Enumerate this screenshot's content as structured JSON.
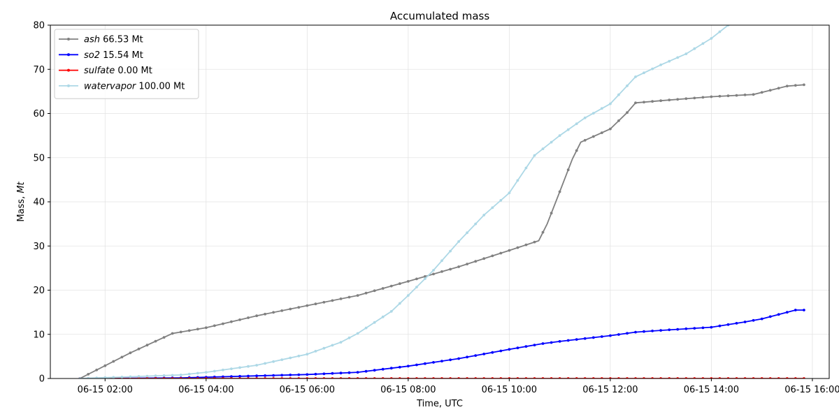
{
  "chart_data": {
    "type": "line",
    "title": "Accumulated mass",
    "xlabel": "Time, UTC",
    "ylabel_prefix": "Mass, ",
    "ylabel_unit": "Mt",
    "ylim": [
      0,
      80
    ],
    "xlim": [
      "06-15 00:55",
      "06-15 16:20"
    ],
    "grid": true,
    "legend_position": "top-left",
    "yticks": [
      0,
      10,
      20,
      30,
      40,
      50,
      60,
      70,
      80
    ],
    "xticks": [
      {
        "time": "06-15 02:00",
        "label": "06-15 02:00"
      },
      {
        "time": "06-15 04:00",
        "label": "06-15 04:00"
      },
      {
        "time": "06-15 06:00",
        "label": "06-15 06:00"
      },
      {
        "time": "06-15 08:00",
        "label": "06-15 08:00"
      },
      {
        "time": "06-15 10:00",
        "label": "06-15 10:00"
      },
      {
        "time": "06-15 12:00",
        "label": "06-15 12:00"
      },
      {
        "time": "06-15 14:00",
        "label": "06-15 14:00"
      },
      {
        "time": "06-15 16:00",
        "label": "06-15 16:00"
      }
    ],
    "series": [
      {
        "name": "ash",
        "legend_value": "66.53 Mt",
        "color": "#808080",
        "points": [
          [
            "06-15 01:30",
            0.0
          ],
          [
            "06-15 02:30",
            5.8
          ],
          [
            "06-15 03:20",
            10.2
          ],
          [
            "06-15 04:00",
            11.5
          ],
          [
            "06-15 05:00",
            14.2
          ],
          [
            "06-15 06:00",
            16.5
          ],
          [
            "06-15 07:00",
            18.8
          ],
          [
            "06-15 08:00",
            22.0
          ],
          [
            "06-15 09:00",
            25.3
          ],
          [
            "06-15 10:00",
            29.0
          ],
          [
            "06-15 10:35",
            31.2
          ],
          [
            "06-15 10:45",
            35.0
          ],
          [
            "06-15 11:00",
            42.3
          ],
          [
            "06-15 11:15",
            49.7
          ],
          [
            "06-15 11:25",
            53.5
          ],
          [
            "06-15 12:00",
            56.5
          ],
          [
            "06-15 12:20",
            60.2
          ],
          [
            "06-15 12:30",
            62.4
          ],
          [
            "06-15 13:00",
            62.9
          ],
          [
            "06-15 14:00",
            63.8
          ],
          [
            "06-15 14:50",
            64.3
          ],
          [
            "06-15 15:30",
            66.2
          ],
          [
            "06-15 15:50",
            66.5
          ]
        ]
      },
      {
        "name": "so2",
        "legend_value": "15.54 Mt",
        "color": "#0000ff",
        "points": [
          [
            "06-15 01:30",
            0.0
          ],
          [
            "06-15 02:30",
            0.05
          ],
          [
            "06-15 03:30",
            0.15
          ],
          [
            "06-15 04:00",
            0.3
          ],
          [
            "06-15 05:00",
            0.6
          ],
          [
            "06-15 06:00",
            0.9
          ],
          [
            "06-15 07:00",
            1.4
          ],
          [
            "06-15 08:00",
            2.8
          ],
          [
            "06-15 09:00",
            4.5
          ],
          [
            "06-15 10:00",
            6.6
          ],
          [
            "06-15 10:40",
            7.9
          ],
          [
            "06-15 11:00",
            8.4
          ],
          [
            "06-15 12:00",
            9.7
          ],
          [
            "06-15 12:30",
            10.5
          ],
          [
            "06-15 13:00",
            10.9
          ],
          [
            "06-15 14:00",
            11.6
          ],
          [
            "06-15 14:40",
            12.8
          ],
          [
            "06-15 15:00",
            13.5
          ],
          [
            "06-15 15:40",
            15.5
          ],
          [
            "06-15 15:50",
            15.5
          ]
        ]
      },
      {
        "name": "sulfate",
        "legend_value": "0.00 Mt",
        "color": "#ff0000",
        "points": [
          [
            "06-15 01:30",
            0.0
          ],
          [
            "06-15 04:00",
            0.0
          ],
          [
            "06-15 08:00",
            0.0
          ],
          [
            "06-15 12:00",
            0.0
          ],
          [
            "06-15 15:50",
            0.0
          ]
        ]
      },
      {
        "name": "watervapor",
        "legend_value": "100.00 Mt",
        "color": "#add8e6",
        "points": [
          [
            "06-15 01:30",
            0.0
          ],
          [
            "06-15 02:30",
            0.4
          ],
          [
            "06-15 03:30",
            0.8
          ],
          [
            "06-15 04:00",
            1.4
          ],
          [
            "06-15 05:00",
            3.0
          ],
          [
            "06-15 06:00",
            5.5
          ],
          [
            "06-15 06:40",
            8.2
          ],
          [
            "06-15 07:00",
            10.2
          ],
          [
            "06-15 07:40",
            15.2
          ],
          [
            "06-15 08:00",
            18.8
          ],
          [
            "06-15 08:30",
            24.5
          ],
          [
            "06-15 09:00",
            31.0
          ],
          [
            "06-15 09:30",
            37.0
          ],
          [
            "06-15 10:00",
            42.0
          ],
          [
            "06-15 10:30",
            50.5
          ],
          [
            "06-15 11:00",
            55.0
          ],
          [
            "06-15 11:30",
            59.0
          ],
          [
            "06-15 12:00",
            62.2
          ],
          [
            "06-15 12:30",
            68.3
          ],
          [
            "06-15 13:00",
            71.0
          ],
          [
            "06-15 13:30",
            73.5
          ],
          [
            "06-15 14:00",
            77.0
          ],
          [
            "06-15 14:20",
            80.0
          ]
        ]
      }
    ]
  }
}
